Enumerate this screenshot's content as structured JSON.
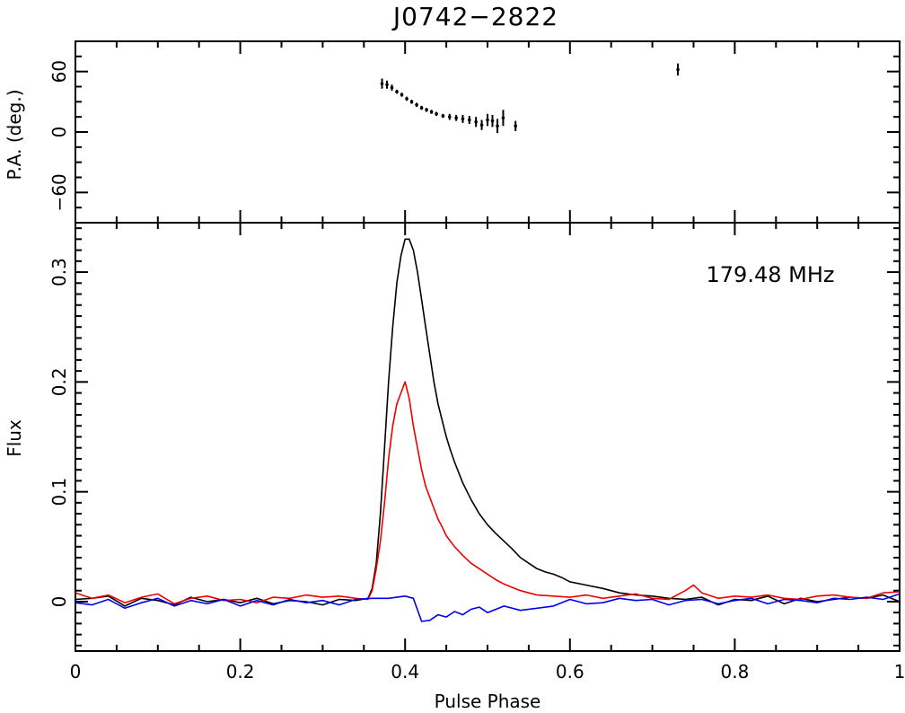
{
  "chart_data": {
    "type": "line",
    "title": "J0742−2822",
    "xlabel": "Pulse Phase",
    "xlim": [
      0,
      1
    ],
    "x_ticks": [
      0,
      0.2,
      0.4,
      0.6,
      0.8,
      1
    ],
    "x_tick_labels": [
      "0",
      "0.2",
      "0.4",
      "0.6",
      "0.8",
      "1"
    ],
    "panels": {
      "pa": {
        "type": "scatter",
        "ylabel": "P.A. (deg.)",
        "ylim": [
          -90,
          90
        ],
        "y_ticks": [
          -60,
          0,
          60
        ],
        "y_tick_labels": [
          "−60",
          "0",
          "60"
        ],
        "points": [
          {
            "x": 0.372,
            "y": 48,
            "err": 5
          },
          {
            "x": 0.378,
            "y": 47,
            "err": 4
          },
          {
            "x": 0.384,
            "y": 44,
            "err": 3
          },
          {
            "x": 0.39,
            "y": 40,
            "err": 2
          },
          {
            "x": 0.396,
            "y": 37,
            "err": 2
          },
          {
            "x": 0.402,
            "y": 33,
            "err": 2
          },
          {
            "x": 0.408,
            "y": 30,
            "err": 2
          },
          {
            "x": 0.414,
            "y": 27,
            "err": 2
          },
          {
            "x": 0.42,
            "y": 24,
            "err": 2
          },
          {
            "x": 0.426,
            "y": 22,
            "err": 2
          },
          {
            "x": 0.432,
            "y": 20,
            "err": 2
          },
          {
            "x": 0.438,
            "y": 18,
            "err": 2
          },
          {
            "x": 0.446,
            "y": 16,
            "err": 2
          },
          {
            "x": 0.454,
            "y": 15,
            "err": 3
          },
          {
            "x": 0.462,
            "y": 14,
            "err": 3
          },
          {
            "x": 0.47,
            "y": 13,
            "err": 4
          },
          {
            "x": 0.478,
            "y": 12,
            "err": 4
          },
          {
            "x": 0.486,
            "y": 10,
            "err": 5
          },
          {
            "x": 0.493,
            "y": 7,
            "err": 5
          },
          {
            "x": 0.5,
            "y": 12,
            "err": 6
          },
          {
            "x": 0.506,
            "y": 11,
            "err": 6
          },
          {
            "x": 0.512,
            "y": 6,
            "err": 7
          },
          {
            "x": 0.519,
            "y": 14,
            "err": 8
          },
          {
            "x": 0.534,
            "y": 6,
            "err": 5
          },
          {
            "x": 0.731,
            "y": 62,
            "err": 6
          }
        ]
      },
      "flux": {
        "ylabel": "Flux",
        "ylim": [
          -0.045,
          0.345
        ],
        "y_ticks": [
          0,
          0.1,
          0.2,
          0.3
        ],
        "y_tick_labels": [
          "0",
          "0.1",
          "0.2",
          "0.3"
        ],
        "annotation": "179.48 MHz",
        "series": [
          {
            "color": "#000000",
            "x": [
              0,
              0.02,
              0.04,
              0.06,
              0.08,
              0.1,
              0.12,
              0.14,
              0.16,
              0.18,
              0.2,
              0.22,
              0.24,
              0.26,
              0.28,
              0.3,
              0.32,
              0.34,
              0.355,
              0.36,
              0.365,
              0.37,
              0.375,
              0.38,
              0.385,
              0.39,
              0.395,
              0.4,
              0.405,
              0.41,
              0.415,
              0.42,
              0.425,
              0.43,
              0.435,
              0.44,
              0.445,
              0.45,
              0.455,
              0.46,
              0.47,
              0.48,
              0.49,
              0.5,
              0.51,
              0.52,
              0.53,
              0.54,
              0.55,
              0.56,
              0.57,
              0.58,
              0.59,
              0.6,
              0.62,
              0.64,
              0.66,
              0.68,
              0.7,
              0.72,
              0.74,
              0.76,
              0.78,
              0.8,
              0.82,
              0.84,
              0.86,
              0.88,
              0.9,
              0.92,
              0.94,
              0.96,
              0.98,
              1.0
            ],
            "y": [
              0.002,
              0.003,
              0.005,
              -0.004,
              0.003,
              0.001,
              -0.003,
              0.004,
              0.0,
              0.002,
              -0.001,
              0.003,
              -0.002,
              0.001,
              0.0,
              -0.003,
              0.002,
              0.001,
              0.003,
              0.012,
              0.035,
              0.08,
              0.14,
              0.2,
              0.25,
              0.29,
              0.315,
              0.33,
              0.33,
              0.32,
              0.3,
              0.275,
              0.25,
              0.225,
              0.2,
              0.18,
              0.165,
              0.15,
              0.138,
              0.127,
              0.108,
              0.093,
              0.08,
              0.07,
              0.062,
              0.055,
              0.048,
              0.04,
              0.035,
              0.03,
              0.027,
              0.025,
              0.022,
              0.018,
              0.015,
              0.012,
              0.008,
              0.006,
              0.005,
              0.003,
              0.002,
              0.004,
              -0.003,
              0.002,
              0.001,
              0.005,
              -0.002,
              0.003,
              0.0,
              0.002,
              0.004,
              0.003,
              0.006,
              0.0
            ]
          },
          {
            "color": "#ee0000",
            "x": [
              0,
              0.02,
              0.04,
              0.06,
              0.08,
              0.1,
              0.12,
              0.14,
              0.16,
              0.18,
              0.2,
              0.22,
              0.24,
              0.26,
              0.28,
              0.3,
              0.32,
              0.34,
              0.355,
              0.36,
              0.365,
              0.37,
              0.375,
              0.38,
              0.385,
              0.39,
              0.395,
              0.4,
              0.405,
              0.41,
              0.415,
              0.42,
              0.425,
              0.43,
              0.435,
              0.44,
              0.445,
              0.45,
              0.46,
              0.47,
              0.48,
              0.49,
              0.5,
              0.51,
              0.52,
              0.53,
              0.54,
              0.55,
              0.56,
              0.58,
              0.6,
              0.62,
              0.64,
              0.66,
              0.68,
              0.7,
              0.72,
              0.74,
              0.75,
              0.76,
              0.78,
              0.8,
              0.82,
              0.84,
              0.86,
              0.88,
              0.9,
              0.92,
              0.94,
              0.96,
              0.98,
              1.0
            ],
            "y": [
              0.008,
              0.003,
              0.006,
              -0.001,
              0.004,
              0.007,
              -0.002,
              0.003,
              0.005,
              0.001,
              0.002,
              -0.001,
              0.004,
              0.003,
              0.006,
              0.004,
              0.005,
              0.003,
              0.002,
              0.01,
              0.03,
              0.055,
              0.09,
              0.13,
              0.16,
              0.18,
              0.19,
              0.2,
              0.185,
              0.16,
              0.14,
              0.12,
              0.105,
              0.095,
              0.085,
              0.075,
              0.068,
              0.06,
              0.05,
              0.042,
              0.035,
              0.03,
              0.025,
              0.02,
              0.016,
              0.013,
              0.01,
              0.008,
              0.006,
              0.005,
              0.004,
              0.006,
              0.003,
              0.005,
              0.007,
              0.003,
              0.002,
              0.01,
              0.015,
              0.008,
              0.003,
              0.005,
              0.004,
              0.006,
              0.003,
              0.002,
              0.005,
              0.006,
              0.004,
              0.003,
              0.008,
              0.009
            ]
          },
          {
            "color": "#0000ee",
            "x": [
              0,
              0.02,
              0.04,
              0.06,
              0.08,
              0.1,
              0.12,
              0.14,
              0.16,
              0.18,
              0.2,
              0.22,
              0.24,
              0.26,
              0.28,
              0.3,
              0.32,
              0.34,
              0.36,
              0.38,
              0.4,
              0.41,
              0.42,
              0.43,
              0.44,
              0.45,
              0.46,
              0.47,
              0.48,
              0.49,
              0.5,
              0.52,
              0.54,
              0.56,
              0.58,
              0.6,
              0.62,
              0.64,
              0.66,
              0.68,
              0.7,
              0.72,
              0.74,
              0.76,
              0.78,
              0.8,
              0.82,
              0.84,
              0.86,
              0.88,
              0.9,
              0.92,
              0.94,
              0.96,
              0.98,
              1.0
            ],
            "y": [
              -0.001,
              -0.003,
              0.002,
              -0.006,
              -0.001,
              0.003,
              -0.004,
              0.001,
              -0.002,
              0.002,
              -0.004,
              0.001,
              -0.003,
              0.002,
              -0.001,
              0.001,
              -0.003,
              0.002,
              0.003,
              0.003,
              0.005,
              0.003,
              -0.018,
              -0.017,
              -0.012,
              -0.014,
              -0.009,
              -0.012,
              -0.007,
              -0.005,
              -0.01,
              -0.004,
              -0.008,
              -0.006,
              -0.004,
              0.002,
              -0.002,
              -0.001,
              0.003,
              0.001,
              0.002,
              -0.003,
              0.001,
              0.002,
              -0.002,
              0.001,
              0.003,
              -0.002,
              0.002,
              0.001,
              -0.001,
              0.003,
              0.002,
              0.004,
              0.002,
              0.007
            ]
          }
        ]
      }
    }
  }
}
